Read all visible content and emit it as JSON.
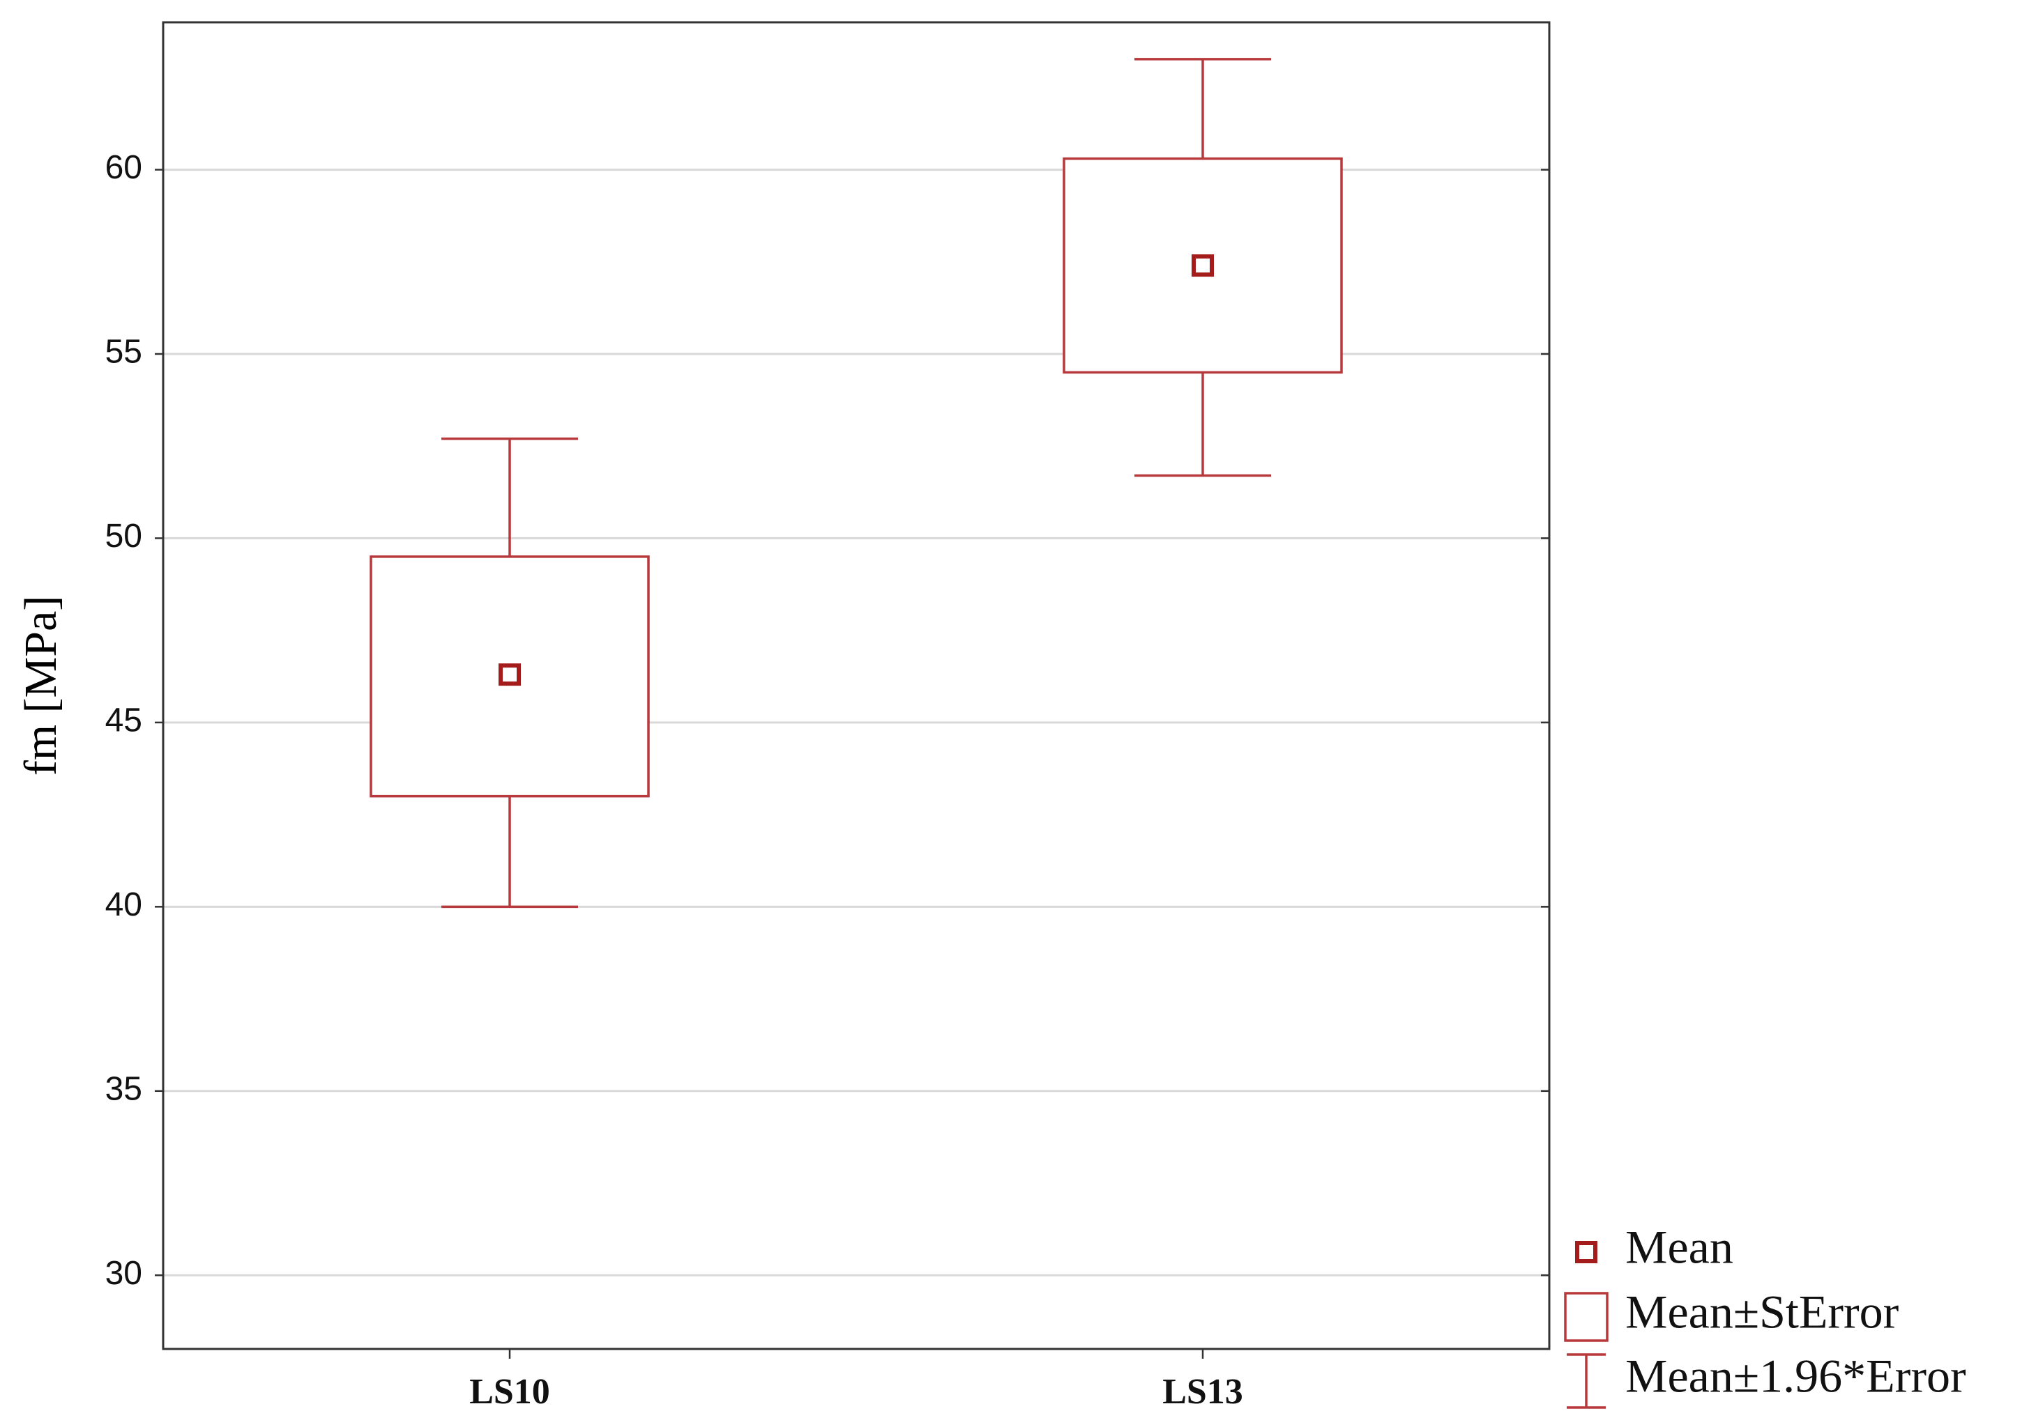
{
  "chart_data": {
    "type": "box",
    "ylabel": "fm [MPa]",
    "categories": [
      "LS10",
      "LS13"
    ],
    "series": [
      {
        "name": "Mean",
        "color": "#a51c1c",
        "values": [
          46.3,
          57.4
        ]
      },
      {
        "name": "Mean±StError",
        "color": "#b8393b",
        "low": [
          43.0,
          54.5
        ],
        "high": [
          49.5,
          60.3
        ]
      },
      {
        "name": "Mean±1.96*Error",
        "color": "#b8393b",
        "low": [
          40.0,
          51.7
        ],
        "high": [
          52.7,
          63.0
        ]
      }
    ],
    "ylim": [
      28,
      64
    ],
    "yticks": [
      30,
      35,
      40,
      45,
      50,
      55,
      60
    ],
    "grid": true,
    "legend": "lower right"
  }
}
